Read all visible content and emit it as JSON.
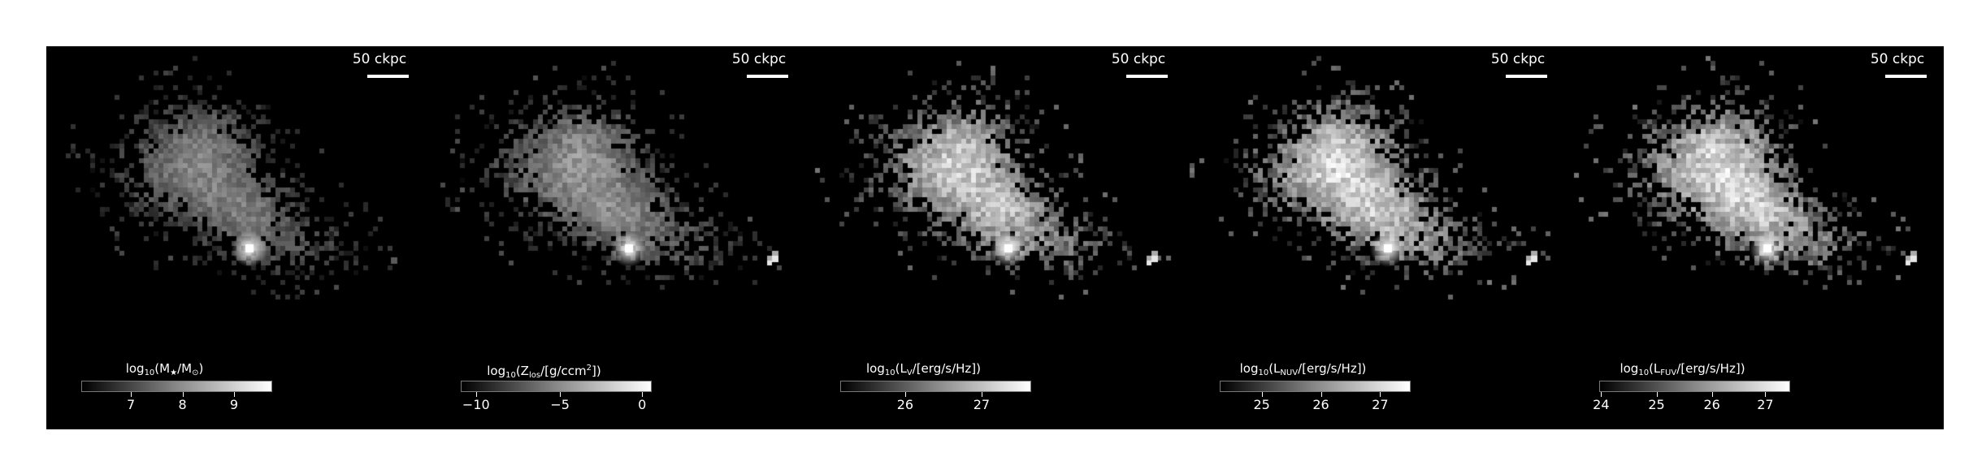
{
  "figure": {
    "panels": [
      {
        "name": "stellar-mass",
        "scale_label": "50 ckpc",
        "colorbar": {
          "title_pre": "log",
          "title_sub": "10",
          "title_mid": "(M",
          "title_sub2": "★",
          "title_mid2": "/M",
          "title_sub3": "⊙",
          "title_end": ")",
          "ticks": [
            {
              "label": "7",
              "frac": 0.26
            },
            {
              "label": "8",
              "frac": 0.53
            },
            {
              "label": "9",
              "frac": 0.8
            }
          ]
        },
        "map": {
          "seed": 11,
          "brightness": 0.55,
          "extra_blob": false
        }
      },
      {
        "name": "metallicity",
        "scale_label": "50 ckpc",
        "colorbar": {
          "title_pre": "log",
          "title_sub": "10",
          "title_mid": "(Z",
          "title_sub2": "los",
          "title_mid2": "/[g/ccm",
          "title_sup": "2",
          "title_end": "])",
          "ticks": [
            {
              "label": "−10",
              "frac": 0.08
            },
            {
              "label": "−5",
              "frac": 0.52
            },
            {
              "label": "0",
              "frac": 0.95
            }
          ]
        },
        "map": {
          "seed": 23,
          "brightness": 0.62,
          "extra_blob": true
        }
      },
      {
        "name": "v-band-luminosity",
        "scale_label": "50 ckpc",
        "colorbar": {
          "title_pre": "log",
          "title_sub": "10",
          "title_mid": "(L",
          "title_sub2": "V",
          "title_mid2": "/[erg/s/Hz])",
          "title_end": "",
          "ticks": [
            {
              "label": "26",
              "frac": 0.34
            },
            {
              "label": "27",
              "frac": 0.74
            }
          ]
        },
        "map": {
          "seed": 37,
          "brightness": 0.85,
          "extra_blob": true
        }
      },
      {
        "name": "nuv-luminosity",
        "scale_label": "50 ckpc",
        "colorbar": {
          "title_pre": "log",
          "title_sub": "10",
          "title_mid": "(L",
          "title_sub2": "NUV",
          "title_mid2": "/[erg/s/Hz])",
          "title_end": "",
          "ticks": [
            {
              "label": "25",
              "frac": 0.22
            },
            {
              "label": "26",
              "frac": 0.53
            },
            {
              "label": "27",
              "frac": 0.84
            }
          ]
        },
        "map": {
          "seed": 53,
          "brightness": 0.9,
          "extra_blob": true
        }
      },
      {
        "name": "fuv-luminosity",
        "scale_label": "50 ckpc",
        "colorbar": {
          "title_pre": "log",
          "title_sub": "10",
          "title_mid": "(L",
          "title_sub2": "FUV",
          "title_mid2": "/[erg/s/Hz])",
          "title_end": "",
          "ticks": [
            {
              "label": "24",
              "frac": 0.01
            },
            {
              "label": "25",
              "frac": 0.3
            },
            {
              "label": "26",
              "frac": 0.59
            },
            {
              "label": "27",
              "frac": 0.87
            }
          ]
        },
        "map": {
          "seed": 71,
          "brightness": 0.9,
          "extra_blob": true
        }
      }
    ]
  }
}
